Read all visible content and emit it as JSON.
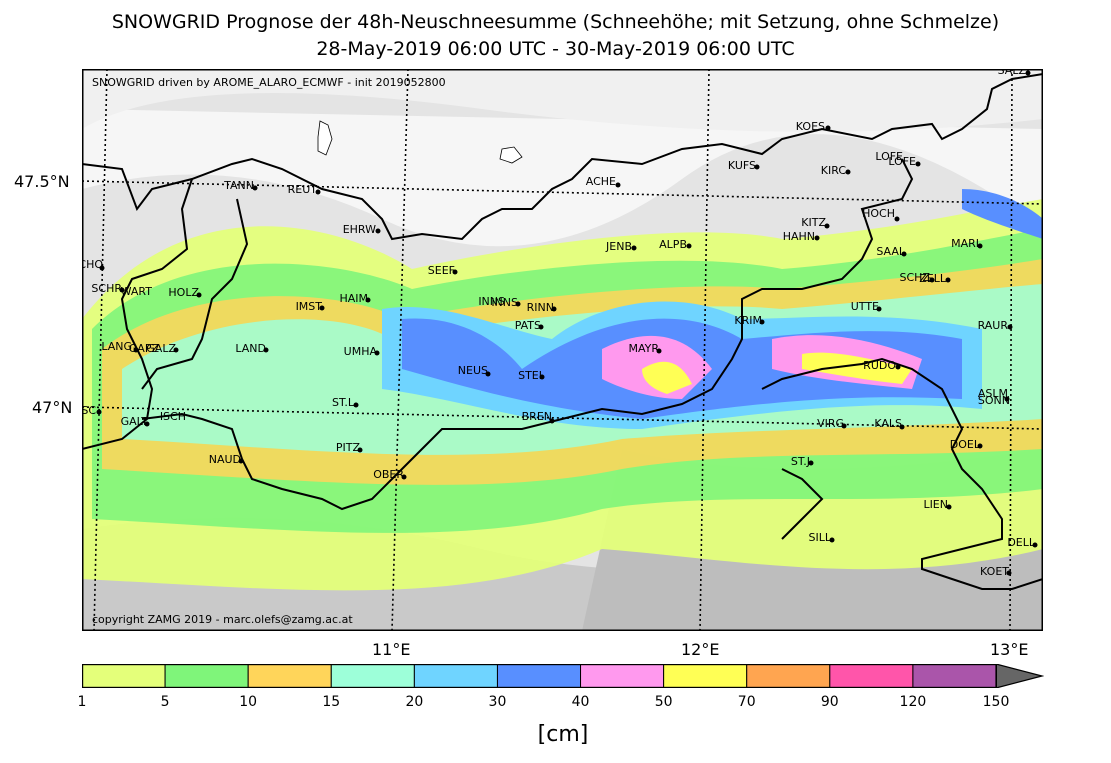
{
  "title": {
    "line1": "SNOWGRID Prognose der 48h-Neuschneesumme (Schneehöhe; mit Setzung, ohne Schmelze)",
    "line2": "28-May-2019 06:00 UTC - 30-May-2019 06:00 UTC"
  },
  "map": {
    "model_note": "SNOWGRID driven by AROME_ALARO_ECMWF - init 2019052800",
    "copyright": "copyright ZAMG 2019 - marc.olefs@zamg.ac.at",
    "lat_labels": [
      "47.5°N",
      "47°N"
    ],
    "lon_labels": [
      "11°E",
      "12°E",
      "13°E"
    ],
    "stations": [
      "SALZ",
      "KOES",
      "KUFS",
      "KIRC",
      "LOFE",
      "LOFE",
      "ACHE",
      "TANN",
      "REUT",
      "HOCH",
      "KITZ",
      "HAHN",
      "EHRW",
      "JENB",
      "ALPB",
      "MARI",
      "SAAL",
      "SCHO",
      "SEEF",
      "SCHZ",
      "ZELL",
      "SCHR",
      "WART",
      "HOLZ",
      "HAIM",
      "INNS",
      "INNS",
      "IMST",
      "RINN",
      "UTTE",
      "PATS",
      "KRIM",
      "RAUR",
      "LANG",
      "GAPZ",
      "GALZ",
      "LAND",
      "UMHA",
      "MAYR",
      "NEUS",
      "STEI",
      "RUDO",
      "ST.L",
      "ASLM",
      "SONN",
      "ISCH",
      "GASC",
      "GALT",
      "BREN",
      "VIRG",
      "KALS",
      "PITZ",
      "DOEL",
      "NAUD",
      "ST.J",
      "OBER",
      "LIEN",
      "SILL",
      "DELL",
      "KOET"
    ],
    "legend": {
      "bounds": [
        "1",
        "5",
        "10",
        "15",
        "20",
        "30",
        "40",
        "50",
        "70",
        "90",
        "120",
        "150"
      ],
      "colors": [
        "#e4ff7a",
        "#7ff57a",
        "#ffd55a",
        "#9dffd9",
        "#6fd4ff",
        "#588fff",
        "#ff99ee",
        "#ffff55",
        "#ffa550",
        "#ff55aa",
        "#aa55aa"
      ],
      "overflow_color": "#666666",
      "unit": "[cm]"
    }
  }
}
